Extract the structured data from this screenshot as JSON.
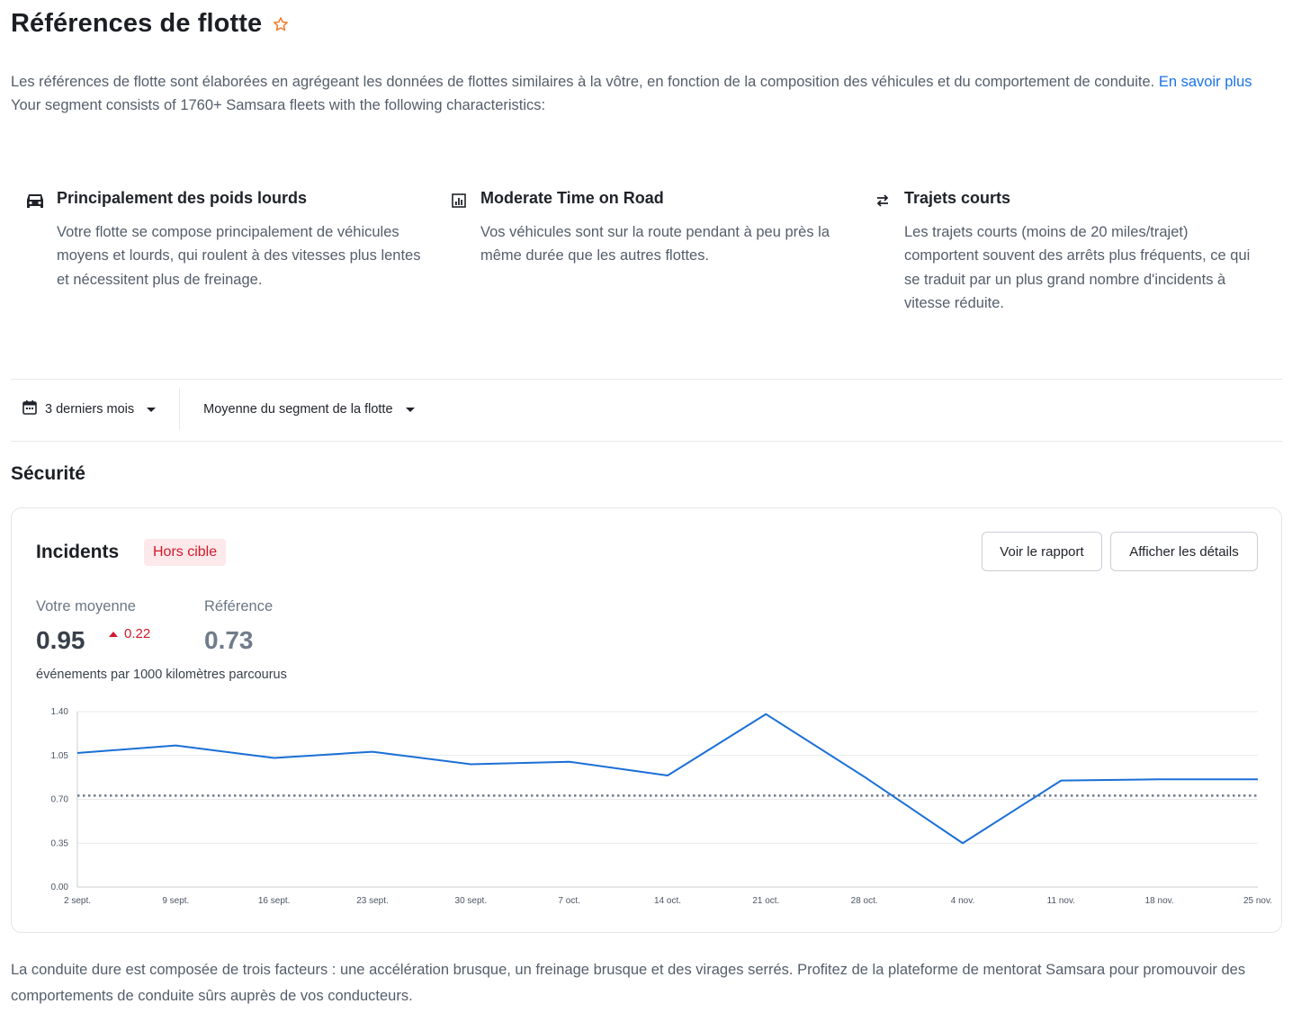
{
  "page": {
    "title": "Références de flotte",
    "intro_text": "Les références de flotte sont élaborées en agrégeant les données de flottes similaires à la vôtre, en fonction de la composition des véhicules et du comportement de conduite. ",
    "learn_more": "En savoir plus",
    "segment_text": "Your segment consists of 1760+ Samsara fleets with the following characteristics:"
  },
  "features": [
    {
      "icon": "truck-icon",
      "title": "Principalement des poids lourds",
      "description": "Votre flotte se compose principalement de véhicules moyens et lourds, qui roulent à des vitesses plus lentes et nécessitent plus de freinage."
    },
    {
      "icon": "bar-chart-icon",
      "title": "Moderate Time on Road",
      "description": "Vos véhicules sont sur la route pendant à peu près la même durée que les autres flottes."
    },
    {
      "icon": "swap-arrows-icon",
      "title": "Trajets courts",
      "description": "Les trajets courts (moins de 20 miles/trajet) comportent souvent des arrêts plus fréquents, ce qui se traduit par un plus grand nombre d'incidents à vitesse réduite."
    }
  ],
  "filters": {
    "date_range": "3 derniers mois",
    "benchmark": "Moyenne du segment de la flotte"
  },
  "section_title": "Sécurité",
  "card": {
    "title": "Incidents",
    "badge": "Hors cible",
    "view_report": "Voir le rapport",
    "show_details": "Afficher les détails",
    "your_average_label": "Votre moyenne",
    "your_average_value": "0.95",
    "delta": "0.22",
    "reference_label": "Référence",
    "reference_value": "0.73",
    "unit": "événements par 1000 kilomètres parcourus"
  },
  "colors": {
    "accent": "#1a73e8",
    "series_line": "#1a6fd6",
    "reference_line": "#6f7c8b",
    "badge_text": "#d0192b",
    "badge_bg": "#fde8ea",
    "star": "#f07b2c"
  },
  "chart_data": {
    "type": "line",
    "x": [
      "2 sept.",
      "9 sept.",
      "16 sept.",
      "23 sept.",
      "30 sept.",
      "7 oct.",
      "14 oct.",
      "21 oct.",
      "28 oct.",
      "4 nov.",
      "11 nov.",
      "18 nov.",
      "25 nov."
    ],
    "series": [
      {
        "values": [
          1.07,
          1.13,
          1.03,
          1.08,
          0.98,
          1.0,
          0.89,
          1.38,
          0.88,
          0.35,
          0.85,
          0.86,
          0.86
        ]
      }
    ],
    "reference": 0.73,
    "yticks": [
      "0.00",
      "0.35",
      "0.70",
      "1.05",
      "1.40"
    ],
    "ylim": [
      0,
      1.4
    ],
    "grid": true
  },
  "footer": "La conduite dure est composée de trois facteurs : une accélération brusque, un freinage brusque et des virages serrés. Profitez de la plateforme de mentorat Samsara pour promouvoir des comportements de conduite sûrs auprès de vos conducteurs."
}
